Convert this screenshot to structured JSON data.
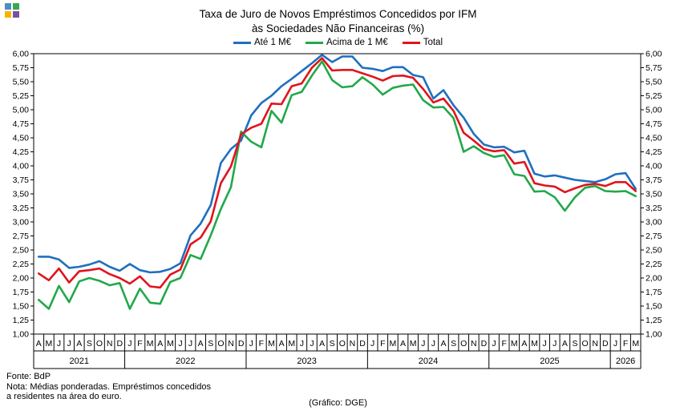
{
  "header": {
    "title_line1": "Taxa de Juro de Novos Empréstimos Concedidos por IFM",
    "title_line2": "às Sociedades Não Financeiras (%)"
  },
  "footer": {
    "source": "Fonte: BdP",
    "note_line1": "Nota: Médias ponderadas. Empréstimos concedidos",
    "note_line2": "a residentes na área do euro.",
    "credit": "(Gráfico: DGE)"
  },
  "logo": {
    "colors": [
      "#4a8fc7",
      "#3aa84a",
      "#f5b400",
      "#7b4fa0"
    ]
  },
  "chart_data": {
    "type": "line",
    "categories": [
      "A",
      "M",
      "J",
      "J",
      "A",
      "S",
      "O",
      "N",
      "D",
      "J",
      "F",
      "M",
      "A",
      "M",
      "J",
      "J",
      "A",
      "S",
      "O",
      "N",
      "D",
      "J",
      "F",
      "M",
      "A",
      "M",
      "J",
      "J",
      "A",
      "S",
      "O",
      "N",
      "D",
      "J",
      "F",
      "M",
      "A",
      "M",
      "J",
      "J",
      "A",
      "S",
      "O",
      "N",
      "D",
      "J",
      "F",
      "M",
      "A",
      "M",
      "J",
      "J",
      "A",
      "S",
      "O",
      "N",
      "D",
      "J",
      "F",
      "M"
    ],
    "years": [
      {
        "label": "2021",
        "months": 9
      },
      {
        "label": "2022",
        "months": 12
      },
      {
        "label": "2023",
        "months": 12
      },
      {
        "label": "2024",
        "months": 12
      },
      {
        "label": "2025",
        "months": 12
      },
      {
        "label": "2026",
        "months": 3
      }
    ],
    "ylim": [
      1.0,
      6.0
    ],
    "y_ticks": [
      "1,00",
      "1,25",
      "1,50",
      "1,75",
      "2,00",
      "2,25",
      "2,50",
      "2,75",
      "3,00",
      "3,25",
      "3,50",
      "3,75",
      "4,00",
      "4,25",
      "4,50",
      "4,75",
      "5,00",
      "5,25",
      "5,50",
      "5,75",
      "6,00"
    ],
    "legend_position": "top-center",
    "grid": false,
    "series": [
      {
        "name": "Até 1 M€",
        "color": "#1f6fbf",
        "values": [
          2.38,
          2.38,
          2.33,
          2.18,
          2.2,
          2.24,
          2.3,
          2.2,
          2.13,
          2.25,
          2.14,
          2.1,
          2.11,
          2.16,
          2.26,
          2.76,
          2.97,
          3.3,
          4.05,
          4.3,
          4.45,
          4.9,
          5.12,
          5.25,
          5.42,
          5.55,
          5.69,
          5.83,
          5.98,
          5.85,
          5.95,
          5.95,
          5.75,
          5.73,
          5.69,
          5.76,
          5.76,
          5.62,
          5.58,
          5.2,
          5.35,
          5.08,
          4.86,
          4.57,
          4.38,
          4.33,
          4.34,
          4.24,
          4.27,
          3.86,
          3.81,
          3.83,
          3.79,
          3.75,
          3.73,
          3.71,
          3.76,
          3.85,
          3.87,
          3.59
        ]
      },
      {
        "name": "Acima de 1 M€",
        "color": "#22a84a",
        "values": [
          1.61,
          1.45,
          1.86,
          1.57,
          1.94,
          2.0,
          1.95,
          1.87,
          1.91,
          1.45,
          1.81,
          1.56,
          1.54,
          1.93,
          2.0,
          2.41,
          2.34,
          2.76,
          3.23,
          3.62,
          4.61,
          4.43,
          4.33,
          4.98,
          4.77,
          5.26,
          5.32,
          5.61,
          5.86,
          5.53,
          5.4,
          5.42,
          5.58,
          5.45,
          5.27,
          5.39,
          5.43,
          5.45,
          5.17,
          5.04,
          5.05,
          4.85,
          4.25,
          4.35,
          4.23,
          4.16,
          4.19,
          3.85,
          3.82,
          3.54,
          3.55,
          3.44,
          3.2,
          3.44,
          3.61,
          3.64,
          3.55,
          3.54,
          3.55,
          3.46
        ]
      },
      {
        "name": "Total",
        "color": "#e0141c",
        "values": [
          2.08,
          1.96,
          2.17,
          1.92,
          2.12,
          2.14,
          2.17,
          2.07,
          2.0,
          1.9,
          2.03,
          1.85,
          1.83,
          2.06,
          2.15,
          2.6,
          2.72,
          3.01,
          3.69,
          3.99,
          4.56,
          4.68,
          4.75,
          5.11,
          5.1,
          5.42,
          5.47,
          5.75,
          5.92,
          5.7,
          5.71,
          5.71,
          5.65,
          5.59,
          5.52,
          5.6,
          5.61,
          5.57,
          5.37,
          5.13,
          5.2,
          4.98,
          4.59,
          4.45,
          4.3,
          4.26,
          4.28,
          4.04,
          4.07,
          3.69,
          3.65,
          3.63,
          3.53,
          3.6,
          3.66,
          3.68,
          3.64,
          3.71,
          3.71,
          3.55
        ]
      }
    ]
  }
}
